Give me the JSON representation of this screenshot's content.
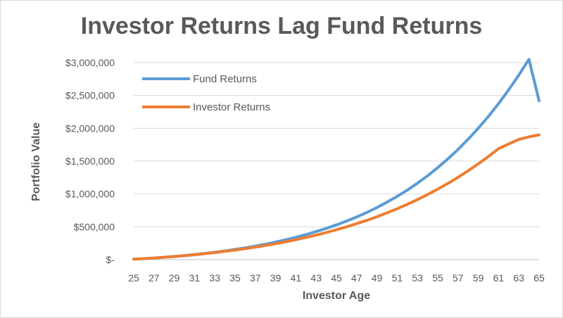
{
  "chart_data": {
    "type": "line",
    "title": "Investor Returns Lag Fund Returns",
    "xlabel": "Investor Age",
    "ylabel": "Portfolio Value",
    "x": [
      25,
      26,
      27,
      28,
      29,
      30,
      31,
      32,
      33,
      34,
      35,
      36,
      37,
      38,
      39,
      40,
      41,
      42,
      43,
      44,
      45,
      46,
      47,
      48,
      49,
      50,
      51,
      52,
      53,
      54,
      55,
      56,
      57,
      58,
      59,
      60,
      61,
      62,
      63,
      64,
      65
    ],
    "x_tick_labels": [
      "25",
      "27",
      "29",
      "31",
      "33",
      "35",
      "37",
      "39",
      "41",
      "43",
      "45",
      "47",
      "49",
      "51",
      "53",
      "55",
      "57",
      "59",
      "61",
      "63",
      "65"
    ],
    "ylim": [
      0,
      3000000
    ],
    "y_tick_values": [
      0,
      500000,
      1000000,
      1500000,
      2000000,
      2500000,
      3000000
    ],
    "y_tick_labels": [
      "$-",
      "$500,000",
      "$1,000,000",
      "$1,500,000",
      "$2,000,000",
      "$2,500,000",
      "$3,000,000"
    ],
    "grid": true,
    "legend_position": "top-left",
    "series": [
      {
        "name": "Fund Returns",
        "color": "#5b9bd5",
        "values": [
          6000,
          15000,
          25000,
          36000,
          48000,
          62000,
          77000,
          94000,
          112000,
          132000,
          155000,
          180000,
          206000,
          235000,
          267000,
          302000,
          340000,
          381000,
          426000,
          475000,
          528000,
          586000,
          649000,
          718000,
          793000,
          875000,
          963000,
          1059000,
          1164000,
          1277000,
          1400000,
          1533000,
          1677000,
          1833000,
          2000000,
          2180000,
          2375000,
          2585000,
          2810000,
          3050000,
          2420000
        ]
      },
      {
        "name": "Investor Returns",
        "color": "#ed7d31",
        "values": [
          6000,
          15000,
          25000,
          36000,
          47000,
          60000,
          74000,
          90000,
          107000,
          125000,
          145000,
          167000,
          190000,
          215000,
          242000,
          272000,
          303000,
          337000,
          373000,
          412000,
          454000,
          499000,
          547000,
          598000,
          653000,
          712000,
          775000,
          842000,
          914000,
          991000,
          1073000,
          1160000,
          1253000,
          1352000,
          1458000,
          1570000,
          1690000,
          1760000,
          1830000,
          1870000,
          1900000
        ]
      }
    ]
  }
}
